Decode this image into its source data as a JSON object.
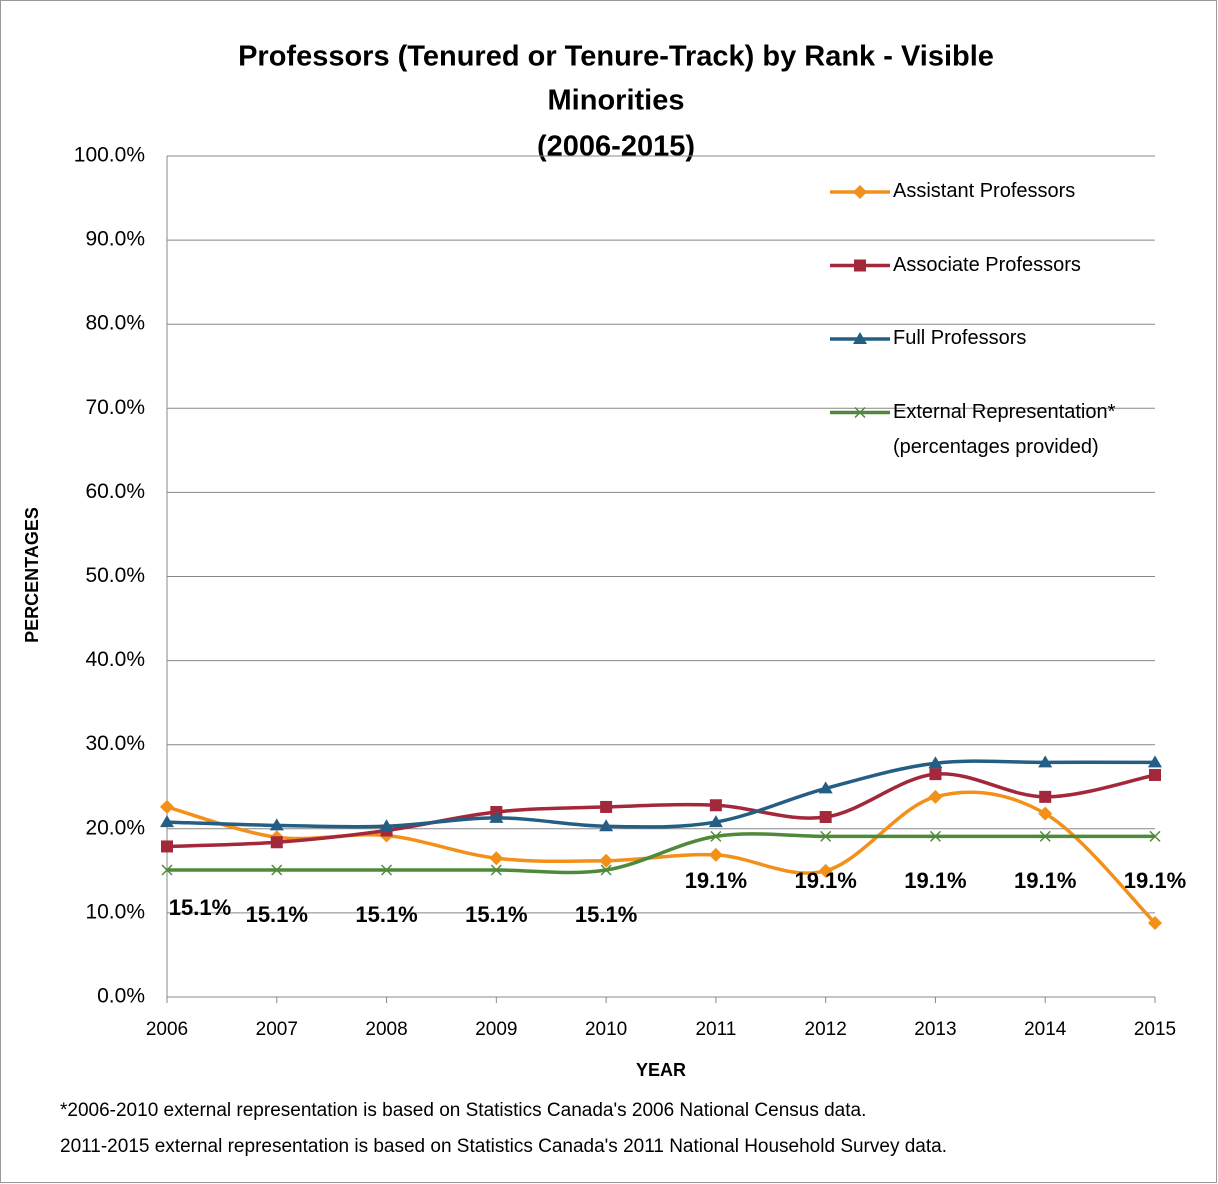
{
  "chart_data": {
    "type": "line",
    "title": [
      "Professors (Tenured or Tenure-Track) by Rank - Visible",
      "Minorities",
      "(2006-2015)"
    ],
    "x_label": "YEAR",
    "y_label": "PERCENTAGES",
    "categories": [
      "2006",
      "2007",
      "2008",
      "2009",
      "2010",
      "2011",
      "2012",
      "2013",
      "2014",
      "2015"
    ],
    "series": [
      {
        "name": "Assistant Professors",
        "color": "#f39019",
        "marker": "diamond",
        "values": [
          22.6,
          19.0,
          19.2,
          16.5,
          16.2,
          16.9,
          15.0,
          23.8,
          21.8,
          8.8
        ]
      },
      {
        "name": "Associate Professors",
        "color": "#a4283b",
        "marker": "square",
        "values": [
          17.9,
          18.4,
          19.8,
          22.0,
          22.6,
          22.8,
          21.4,
          26.5,
          23.8,
          26.4
        ]
      },
      {
        "name": "Full Professors",
        "color": "#255e84",
        "marker": "triangle",
        "values": [
          20.8,
          20.4,
          20.3,
          21.3,
          20.3,
          20.8,
          24.8,
          27.8,
          27.9,
          27.9
        ]
      },
      {
        "name": "External Representation*\n(percentages provided)",
        "color": "#4f8a3b",
        "marker": "x",
        "values": [
          15.1,
          15.1,
          15.1,
          15.1,
          15.1,
          19.1,
          19.1,
          19.1,
          19.1,
          19.1
        ],
        "value_labels": [
          "15.1%",
          "15.1%",
          "15.1%",
          "15.1%",
          "15.1%",
          "19.1%",
          "19.1%",
          "19.1%",
          "19.1%",
          "19.1%"
        ]
      }
    ],
    "ylim": [
      0,
      100
    ],
    "yticks": [
      {
        "value": 0,
        "label": "0.0%"
      },
      {
        "value": 10,
        "label": "10.0%"
      },
      {
        "value": 20,
        "label": "20.0%"
      },
      {
        "value": 30,
        "label": "30.0%"
      },
      {
        "value": 40,
        "label": "40.0%"
      },
      {
        "value": 50,
        "label": "50.0%"
      },
      {
        "value": 60,
        "label": "60.0%"
      },
      {
        "value": 70,
        "label": "70.0%"
      },
      {
        "value": 80,
        "label": "80.0%"
      },
      {
        "value": 90,
        "label": "90.0%"
      },
      {
        "value": 100,
        "label": "100.0%"
      }
    ],
    "grid": true,
    "smooth": true,
    "legend": "top-right",
    "notes": [
      "*2006-2010 external representation is based on Statistics Canada's 2006 National Census data.",
      "2011-2015 external representation is based on Statistics Canada's 2011 National Household Survey data."
    ]
  }
}
